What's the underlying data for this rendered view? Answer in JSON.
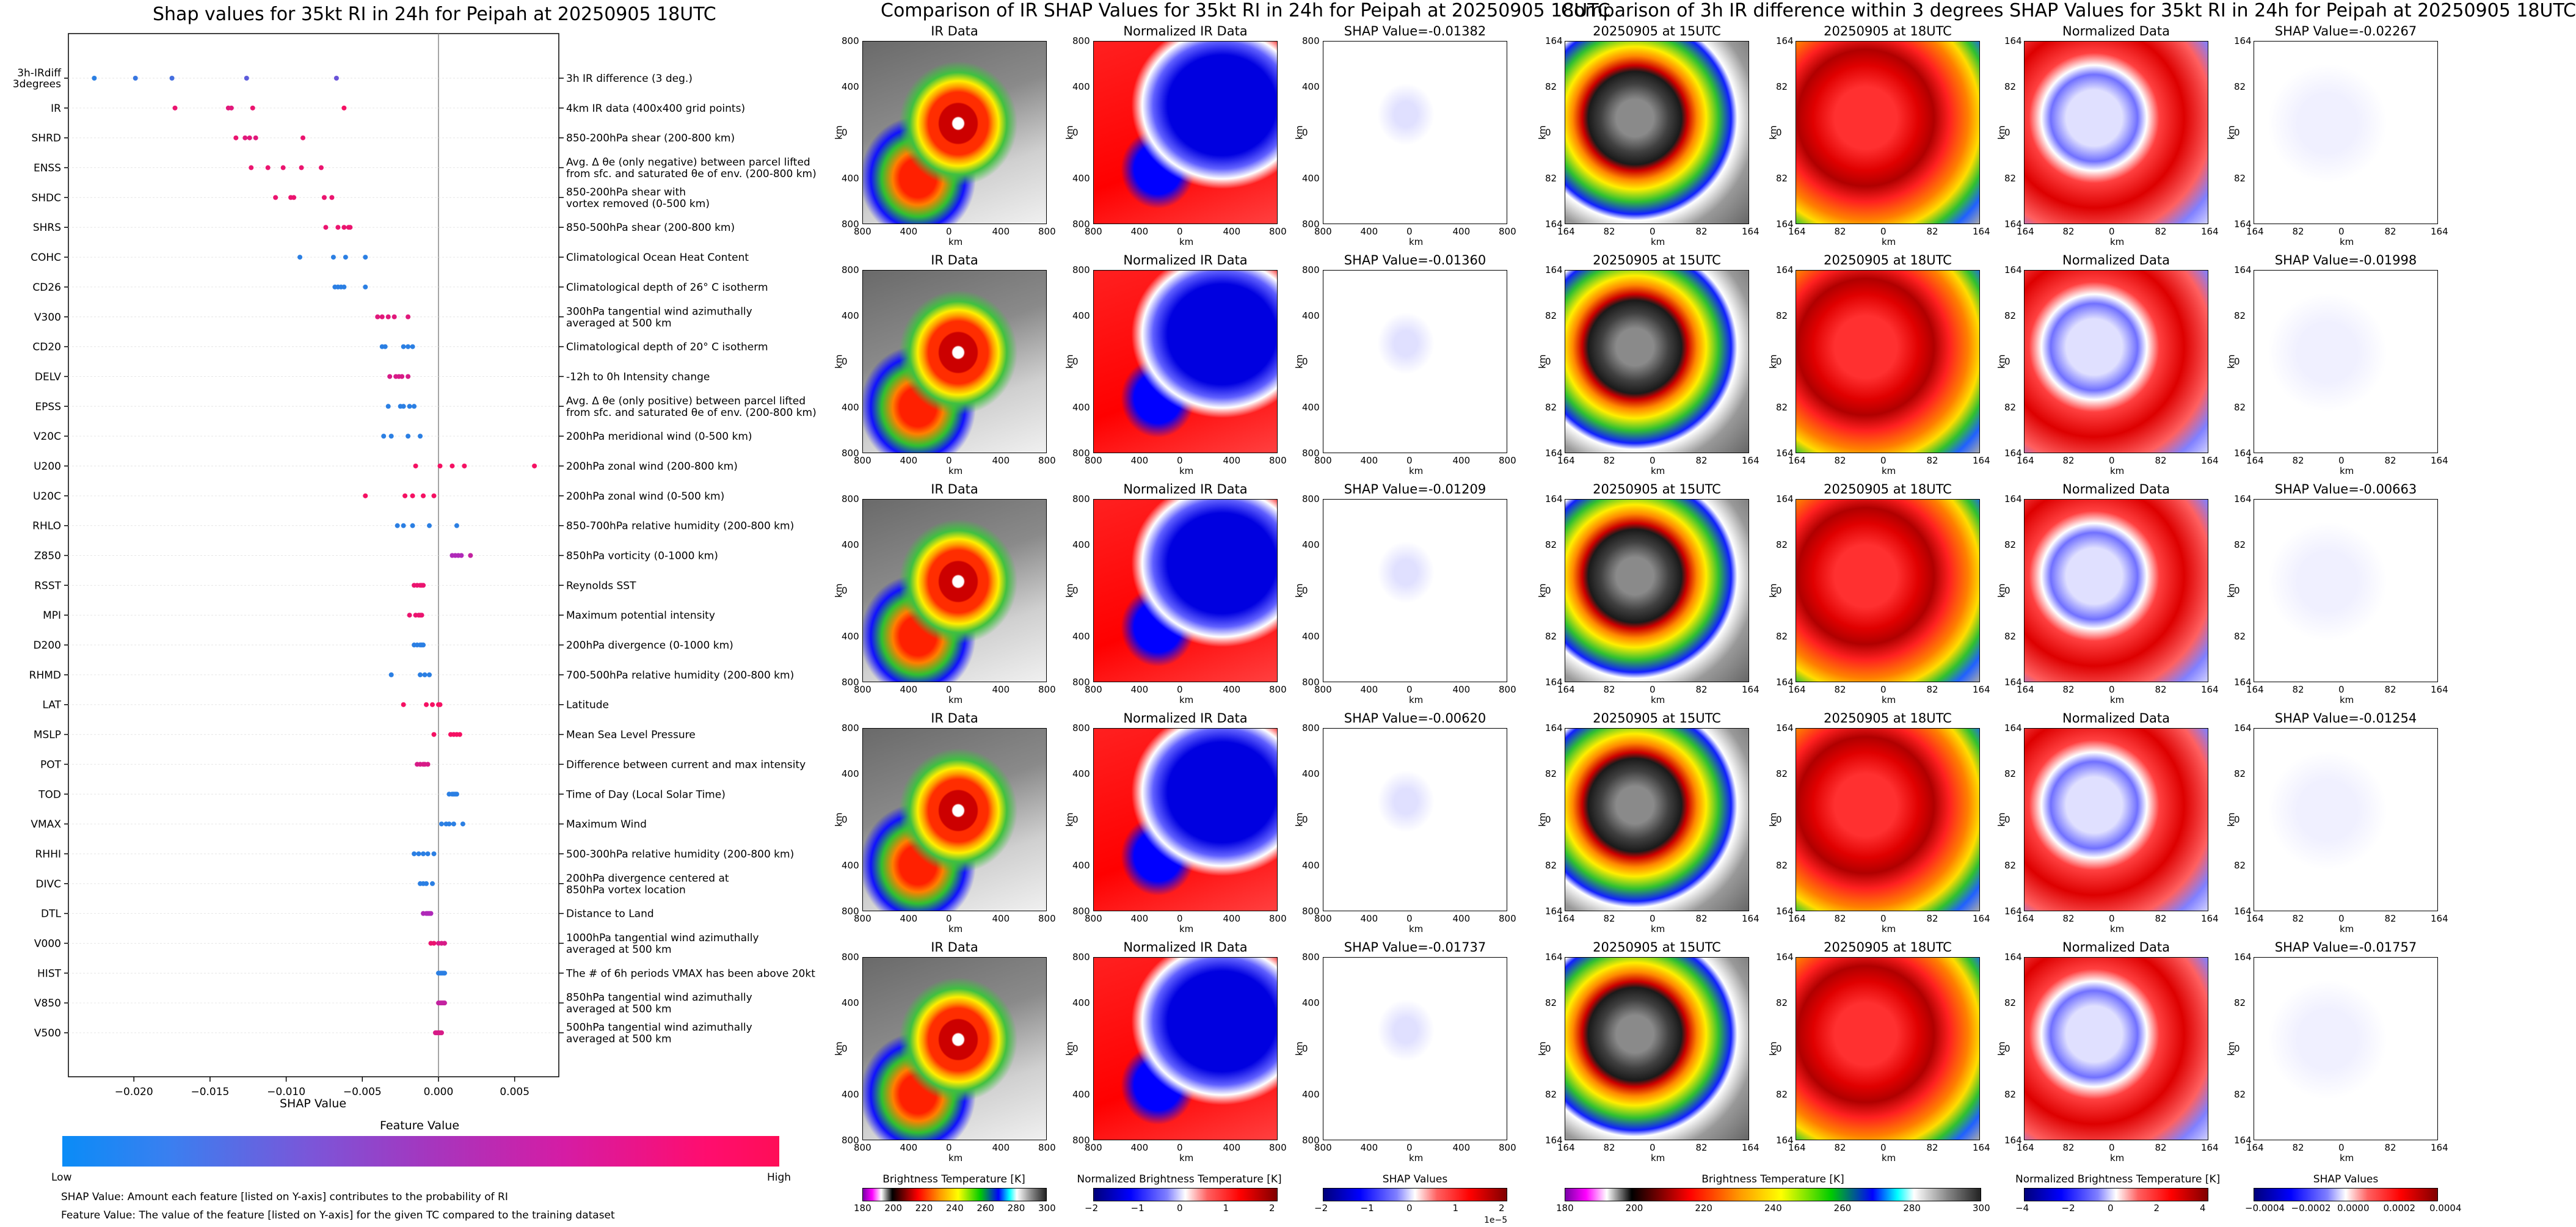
{
  "left": {
    "title": "Shap values for 35kt RI in 24h for Peipah at 20250905 18UTC",
    "xlabel": "SHAP Value",
    "colorbar_title": "Feature Value",
    "low_label": "Low",
    "high_label": "High",
    "note1": "SHAP Value: Amount each feature [listed on Y-axis] contributes to the probability of RI",
    "note2": "Feature Value: The value of the feature [listed on Y-axis] for the given TC compared to the training dataset"
  },
  "colors": {
    "low": "#1e88e5",
    "mid": "#9b30d0",
    "high": "#ff0d57"
  },
  "chart_data": {
    "type": "scatter",
    "title": "Shap values for 35kt RI in 24h for Peipah at 20250905 18UTC",
    "xlabel": "SHAP Value",
    "xlim": [
      -0.0243,
      0.0079
    ],
    "xticks": [
      "−0.020",
      "−0.015",
      "−0.010",
      "−0.005",
      "0.000",
      "0.005"
    ],
    "xtick_values": [
      -0.02,
      -0.015,
      -0.01,
      -0.005,
      0.0,
      0.005
    ],
    "features": [
      {
        "name": "3h-IRdiff\n3degrees",
        "desc": "3h IR difference (3 deg.)",
        "pts": [
          [
            -0.0226,
            0.05
          ],
          [
            -0.0199,
            0.1
          ],
          [
            -0.0175,
            0.15
          ],
          [
            -0.0126,
            0.25
          ],
          [
            -0.0067,
            0.3
          ]
        ]
      },
      {
        "name": "IR",
        "desc": "4km IR data (400x400 grid points)",
        "pts": [
          [
            -0.0173,
            0.9
          ],
          [
            -0.0138,
            0.85
          ],
          [
            -0.0136,
            0.85
          ],
          [
            -0.0122,
            0.9
          ],
          [
            -0.0062,
            0.95
          ]
        ]
      },
      {
        "name": "SHRD",
        "desc": "850-200hPa shear (200-800 km)",
        "pts": [
          [
            -0.0133,
            0.9
          ],
          [
            -0.0127,
            0.85
          ],
          [
            -0.0124,
            0.85
          ],
          [
            -0.012,
            0.85
          ],
          [
            -0.0089,
            0.9
          ]
        ]
      },
      {
        "name": "ENSS",
        "desc": "Avg. Δ θe (only negative) between parcel lifted\nfrom sfc. and saturated θe of env. (200-800 km)",
        "pts": [
          [
            -0.0123,
            0.9
          ],
          [
            -0.0112,
            0.9
          ],
          [
            -0.0102,
            0.9
          ],
          [
            -0.009,
            0.9
          ],
          [
            -0.0077,
            0.9
          ]
        ]
      },
      {
        "name": "SHDC",
        "desc": "850-200hPa shear with\nvortex removed (0-500 km)",
        "pts": [
          [
            -0.0107,
            0.9
          ],
          [
            -0.0097,
            0.9
          ],
          [
            -0.0095,
            0.9
          ],
          [
            -0.0075,
            0.9
          ],
          [
            -0.007,
            0.9
          ]
        ]
      },
      {
        "name": "SHRS",
        "desc": "850-500hPa shear (200-800 km)",
        "pts": [
          [
            -0.0074,
            0.9
          ],
          [
            -0.0066,
            0.9
          ],
          [
            -0.0062,
            0.9
          ],
          [
            -0.0059,
            0.9
          ],
          [
            -0.0058,
            0.9
          ]
        ]
      },
      {
        "name": "COHC",
        "desc": "Climatological Ocean Heat Content",
        "pts": [
          [
            -0.0091,
            0.05
          ],
          [
            -0.0069,
            0.05
          ],
          [
            -0.0061,
            0.05
          ],
          [
            -0.0048,
            0.05
          ]
        ]
      },
      {
        "name": "CD26",
        "desc": "Climatological depth of 26° C isotherm",
        "pts": [
          [
            -0.0068,
            0.05
          ],
          [
            -0.0066,
            0.05
          ],
          [
            -0.0064,
            0.05
          ],
          [
            -0.0062,
            0.05
          ],
          [
            -0.0048,
            0.05
          ]
        ]
      },
      {
        "name": "V300",
        "desc": "300hPa tangential wind azimuthally\naveraged at 500 km",
        "pts": [
          [
            -0.004,
            0.85
          ],
          [
            -0.0037,
            0.85
          ],
          [
            -0.0033,
            0.85
          ],
          [
            -0.0029,
            0.85
          ],
          [
            -0.002,
            0.85
          ]
        ]
      },
      {
        "name": "CD20",
        "desc": "Climatological depth of 20° C isotherm",
        "pts": [
          [
            -0.0037,
            0.05
          ],
          [
            -0.0035,
            0.05
          ],
          [
            -0.0023,
            0.05
          ],
          [
            -0.002,
            0.05
          ],
          [
            -0.0017,
            0.05
          ]
        ]
      },
      {
        "name": "DELV",
        "desc": "-12h to 0h Intensity change",
        "pts": [
          [
            -0.0032,
            0.8
          ],
          [
            -0.0028,
            0.8
          ],
          [
            -0.0026,
            0.8
          ],
          [
            -0.0024,
            0.8
          ],
          [
            -0.002,
            0.8
          ]
        ]
      },
      {
        "name": "EPSS",
        "desc": "Avg. Δ θe (only positive) between parcel lifted\nfrom sfc. and saturated θe of env. (200-800 km)",
        "pts": [
          [
            -0.0033,
            0.05
          ],
          [
            -0.0025,
            0.05
          ],
          [
            -0.0023,
            0.05
          ],
          [
            -0.0019,
            0.05
          ],
          [
            -0.0016,
            0.05
          ]
        ]
      },
      {
        "name": "V20C",
        "desc": "200hPa meridional wind (0-500 km)",
        "pts": [
          [
            -0.0036,
            0.05
          ],
          [
            -0.0031,
            0.05
          ],
          [
            -0.002,
            0.05
          ],
          [
            -0.0012,
            0.05
          ]
        ]
      },
      {
        "name": "U200",
        "desc": "200hPa zonal wind (200-800 km)",
        "pts": [
          [
            -0.0015,
            0.95
          ],
          [
            0.0001,
            0.95
          ],
          [
            0.0009,
            0.95
          ],
          [
            0.0017,
            0.95
          ],
          [
            0.0063,
            0.95
          ]
        ]
      },
      {
        "name": "U20C",
        "desc": "200hPa zonal wind (0-500 km)",
        "pts": [
          [
            -0.0048,
            0.95
          ],
          [
            -0.0022,
            0.95
          ],
          [
            -0.0017,
            0.95
          ],
          [
            -0.001,
            0.95
          ],
          [
            -0.0003,
            0.95
          ]
        ]
      },
      {
        "name": "RHLO",
        "desc": "850-700hPa relative humidity (200-800 km)",
        "pts": [
          [
            -0.0027,
            0.05
          ],
          [
            -0.0023,
            0.05
          ],
          [
            -0.0017,
            0.05
          ],
          [
            -0.0006,
            0.05
          ],
          [
            0.0012,
            0.05
          ]
        ]
      },
      {
        "name": "Z850",
        "desc": "850hPa vorticity (0-1000 km)",
        "pts": [
          [
            0.0009,
            0.6
          ],
          [
            0.0011,
            0.6
          ],
          [
            0.0013,
            0.6
          ],
          [
            0.0015,
            0.6
          ],
          [
            0.0021,
            0.7
          ]
        ]
      },
      {
        "name": "RSST",
        "desc": "Reynolds SST",
        "pts": [
          [
            -0.0016,
            0.9
          ],
          [
            -0.0014,
            0.9
          ],
          [
            -0.0012,
            0.9
          ],
          [
            -0.0011,
            0.9
          ],
          [
            -0.001,
            0.9
          ]
        ]
      },
      {
        "name": "MPI",
        "desc": "Maximum potential intensity",
        "pts": [
          [
            -0.0019,
            0.9
          ],
          [
            -0.0015,
            0.9
          ],
          [
            -0.0013,
            0.9
          ],
          [
            -0.0012,
            0.9
          ],
          [
            -0.0011,
            0.9
          ]
        ]
      },
      {
        "name": "D200",
        "desc": "200hPa divergence (0-1000 km)",
        "pts": [
          [
            -0.0016,
            0.05
          ],
          [
            -0.0014,
            0.05
          ],
          [
            -0.0012,
            0.05
          ],
          [
            -0.0011,
            0.05
          ],
          [
            -0.001,
            0.05
          ]
        ]
      },
      {
        "name": "RHMD",
        "desc": "700-500hPa relative humidity (200-800 km)",
        "pts": [
          [
            -0.0031,
            0.05
          ],
          [
            -0.0012,
            0.05
          ],
          [
            -0.0009,
            0.05
          ],
          [
            -0.0006,
            0.05
          ]
        ]
      },
      {
        "name": "LAT",
        "desc": "Latitude",
        "pts": [
          [
            -0.0023,
            0.95
          ],
          [
            -0.0008,
            0.95
          ],
          [
            -0.0004,
            0.95
          ],
          [
            0.0,
            0.95
          ],
          [
            0.0001,
            0.95
          ]
        ]
      },
      {
        "name": "MSLP",
        "desc": "Mean Sea Level Pressure",
        "pts": [
          [
            -0.0003,
            0.95
          ],
          [
            0.0008,
            0.95
          ],
          [
            0.001,
            0.95
          ],
          [
            0.0012,
            0.95
          ],
          [
            0.0014,
            0.95
          ]
        ]
      },
      {
        "name": "POT",
        "desc": "Difference between current and max intensity",
        "pts": [
          [
            -0.0014,
            0.8
          ],
          [
            -0.0012,
            0.8
          ],
          [
            -0.001,
            0.8
          ],
          [
            -0.0009,
            0.8
          ],
          [
            -0.0007,
            0.8
          ]
        ]
      },
      {
        "name": "TOD",
        "desc": "Time of Day (Local Solar Time)",
        "pts": [
          [
            0.0007,
            0.05
          ],
          [
            0.0009,
            0.05
          ],
          [
            0.001,
            0.05
          ],
          [
            0.0011,
            0.05
          ],
          [
            0.0012,
            0.05
          ]
        ]
      },
      {
        "name": "VMAX",
        "desc": "Maximum Wind",
        "pts": [
          [
            0.0002,
            0.05
          ],
          [
            0.0005,
            0.05
          ],
          [
            0.0007,
            0.05
          ],
          [
            0.001,
            0.05
          ],
          [
            0.0016,
            0.05
          ]
        ]
      },
      {
        "name": "RHHI",
        "desc": "500-300hPa relative humidity (200-800 km)",
        "pts": [
          [
            -0.0016,
            0.05
          ],
          [
            -0.0013,
            0.05
          ],
          [
            -0.001,
            0.05
          ],
          [
            -0.0007,
            0.05
          ],
          [
            -0.0003,
            0.05
          ]
        ]
      },
      {
        "name": "DIVC",
        "desc": "200hPa divergence centered at\n850hPa vortex location",
        "pts": [
          [
            -0.0012,
            0.05
          ],
          [
            -0.001,
            0.05
          ],
          [
            -0.0008,
            0.05
          ],
          [
            -0.0004,
            0.05
          ]
        ]
      },
      {
        "name": "DTL",
        "desc": "Distance to Land",
        "pts": [
          [
            -0.001,
            0.6
          ],
          [
            -0.0008,
            0.6
          ],
          [
            -0.0007,
            0.6
          ],
          [
            -0.0006,
            0.6
          ],
          [
            -0.0005,
            0.6
          ]
        ]
      },
      {
        "name": "V000",
        "desc": "1000hPa tangential wind azimuthally\naveraged at 500 km",
        "pts": [
          [
            -0.0005,
            0.9
          ],
          [
            -0.0003,
            0.9
          ],
          [
            0.0,
            0.8
          ],
          [
            0.0002,
            0.8
          ],
          [
            0.0004,
            0.8
          ]
        ]
      },
      {
        "name": "HIST",
        "desc": "The # of 6h periods VMAX has been above 20kt",
        "pts": [
          [
            0.0,
            0.05
          ],
          [
            0.0001,
            0.05
          ],
          [
            0.0002,
            0.05
          ],
          [
            0.0003,
            0.05
          ],
          [
            0.0004,
            0.05
          ]
        ]
      },
      {
        "name": "V850",
        "desc": "850hPa tangential wind azimuthally\naveraged at 500 km",
        "pts": [
          [
            0.0,
            0.7
          ],
          [
            0.0001,
            0.7
          ],
          [
            0.0002,
            0.7
          ],
          [
            0.0003,
            0.7
          ],
          [
            0.0004,
            0.7
          ]
        ]
      },
      {
        "name": "V500",
        "desc": "500hPa tangential wind azimuthally\naveraged at 500 km",
        "pts": [
          [
            -0.0002,
            0.8
          ],
          [
            -0.0001,
            0.8
          ],
          [
            0.0,
            0.8
          ],
          [
            0.0001,
            0.8
          ],
          [
            0.0002,
            0.8
          ]
        ]
      }
    ]
  },
  "middle": {
    "title": "Comparison of IR SHAP Values for 35kt RI in 24h for Peipah at 20250905 18UTC",
    "col_titles": [
      "IR Data",
      "Normalized IR Data"
    ],
    "shap_titles": [
      "SHAP Value=-0.01382",
      "SHAP Value=-0.01360",
      "SHAP Value=-0.01209",
      "SHAP Value=-0.00620",
      "SHAP Value=-0.01737"
    ],
    "xticks": [
      "800",
      "400",
      "0",
      "400",
      "800"
    ],
    "yticks": [
      "800",
      "400",
      "0",
      "400",
      "800"
    ],
    "axis_label": "km",
    "cbars": [
      {
        "label": "Brightness Temperature [K]",
        "ticks": [
          "180",
          "200",
          "220",
          "240",
          "260",
          "280",
          "300"
        ]
      },
      {
        "label": "Normalized Brightness Temperature [K]",
        "ticks": [
          "−2",
          "−1",
          "0",
          "1",
          "2"
        ]
      },
      {
        "label": "SHAP Values",
        "ticks": [
          "−2",
          "−1",
          "0",
          "1",
          "2"
        ],
        "offset": "1e−5"
      }
    ]
  },
  "right": {
    "title": "Comparison of 3h IR difference within 3 degrees SHAP Values for 35kt RI in 24h for Peipah at 20250905 18UTC",
    "col_titles": [
      "20250905 at 15UTC",
      "20250905 at 18UTC",
      "Normalized Data"
    ],
    "shap_titles": [
      "SHAP Value=-0.02267",
      "SHAP Value=-0.01998",
      "SHAP Value=-0.00663",
      "SHAP Value=-0.01254",
      "SHAP Value=-0.01757"
    ],
    "xticks": [
      "164",
      "82",
      "0",
      "82",
      "164"
    ],
    "yticks": [
      "164",
      "82",
      "0",
      "82",
      "164"
    ],
    "axis_label": "km",
    "cbars": [
      {
        "label": "Brightness Temperature [K]",
        "ticks": [
          "180",
          "200",
          "220",
          "240",
          "260",
          "280",
          "300"
        ]
      },
      {
        "label": "Normalized Brightness Temperature [K]",
        "ticks": [
          "−4",
          "−2",
          "0",
          "2",
          "4"
        ]
      },
      {
        "label": "SHAP Values",
        "ticks": [
          "−0.0004",
          "−0.0002",
          "0.0000",
          "0.0002",
          "0.0004"
        ]
      }
    ]
  }
}
